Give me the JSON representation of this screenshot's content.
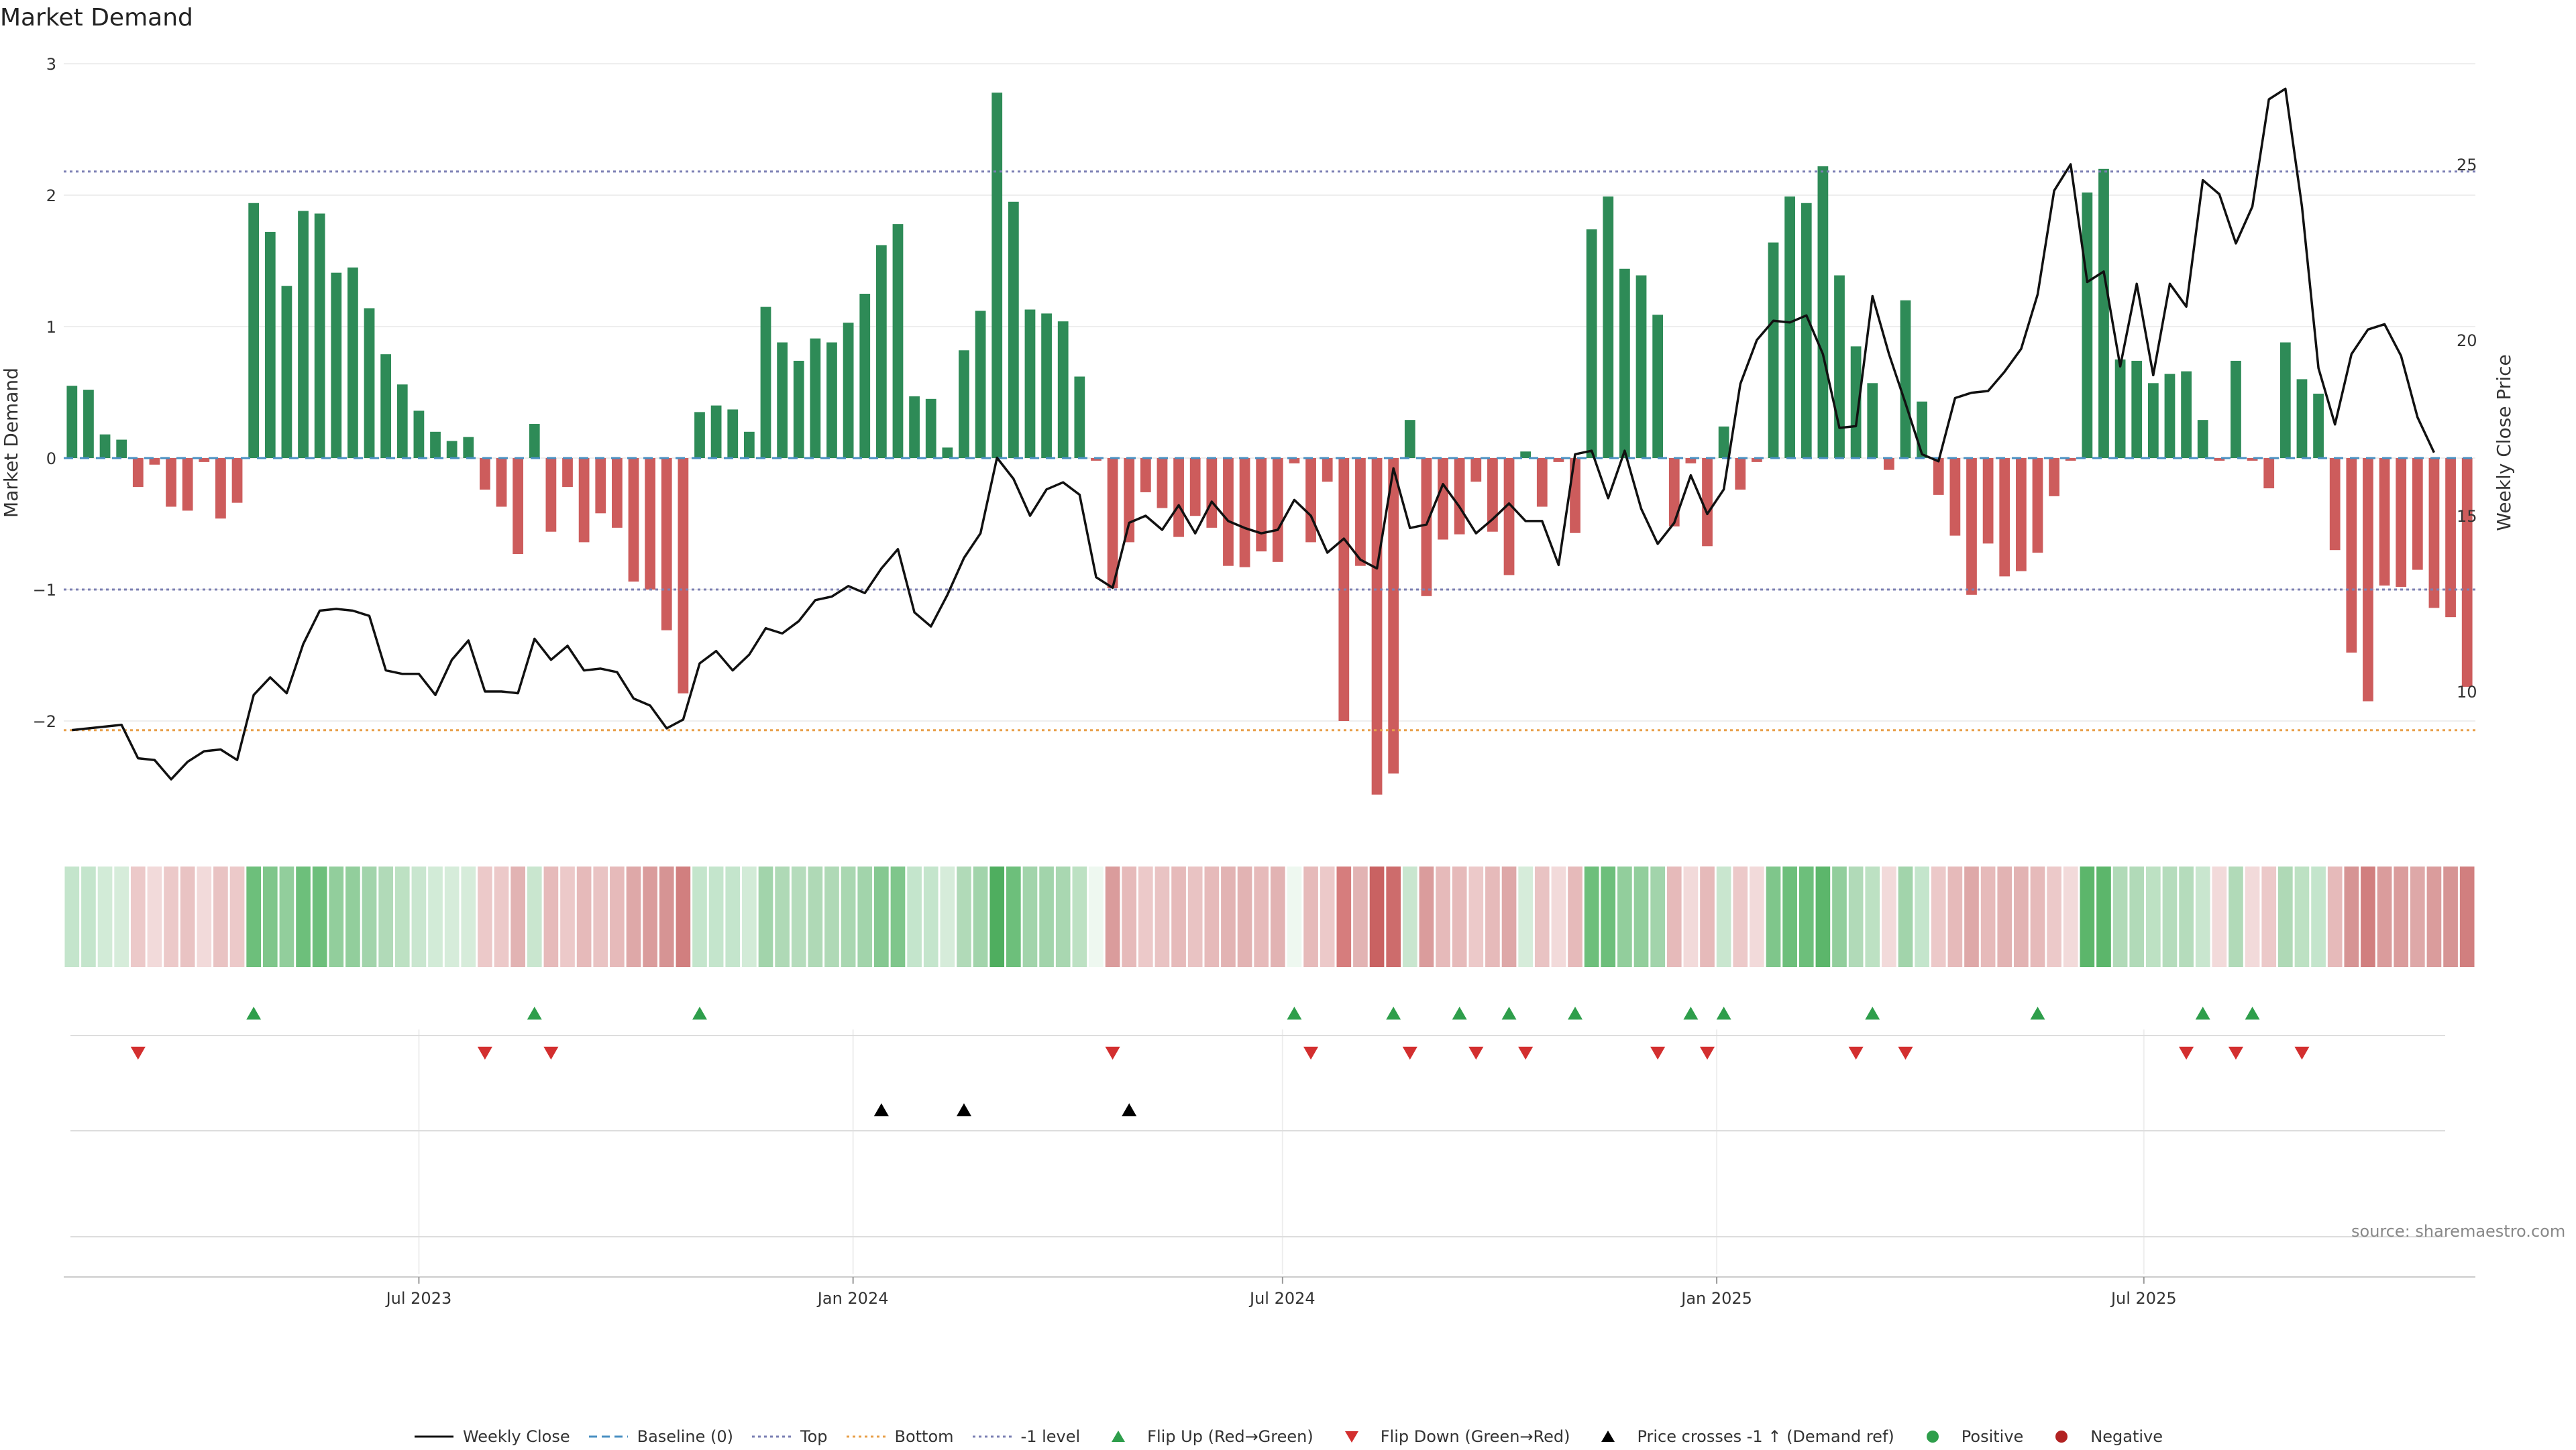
{
  "title": "Market Demand",
  "source": "source: sharemaestro.com",
  "chart_data": {
    "type": "bar",
    "ylabel_left": "Market Demand",
    "ylabel_right": "Weekly Close Price",
    "ylim_left": [
      -2.8,
      3.0
    ],
    "yticks_left": [
      3,
      2,
      1,
      0,
      -1,
      -2
    ],
    "ytick_labels_left": [
      "3",
      "2",
      "1",
      "0",
      "−1",
      "−2"
    ],
    "ylim_right": [
      6.3,
      28.3
    ],
    "yticks_right": [
      25,
      20,
      15,
      10
    ],
    "x_start": "2023-02-04",
    "x_tick_labels": [
      "Jul 2023",
      "Jan 2024",
      "Jul 2024",
      "Jan 2025",
      "Jul 2025"
    ],
    "x_tick_dates": [
      "2023-07-01",
      "2024-01-01",
      "2024-07-01",
      "2025-01-01",
      "2025-07-01"
    ],
    "reference_lines": {
      "top": 2.18,
      "bottom": -2.07,
      "minus_one": -1.0,
      "baseline": 0
    },
    "demand": [
      0.55,
      0.52,
      0.18,
      0.14,
      -0.22,
      -0.05,
      -0.37,
      -0.4,
      -0.03,
      -0.46,
      -0.34,
      1.94,
      1.72,
      1.31,
      1.88,
      1.86,
      1.41,
      1.45,
      1.14,
      0.79,
      0.56,
      0.36,
      0.2,
      0.13,
      0.16,
      -0.24,
      -0.37,
      -0.73,
      0.26,
      -0.56,
      -0.22,
      -0.64,
      -0.42,
      -0.53,
      -0.94,
      -1.0,
      -1.31,
      -1.79,
      0.35,
      0.4,
      0.37,
      0.2,
      1.15,
      0.88,
      0.74,
      0.91,
      0.88,
      1.03,
      1.25,
      1.62,
      1.78,
      0.47,
      0.45,
      0.08,
      0.82,
      1.12,
      2.78,
      1.95,
      1.13,
      1.1,
      1.04,
      0.62,
      -0.02,
      -0.99,
      -0.64,
      -0.26,
      -0.38,
      -0.6,
      -0.44,
      -0.53,
      -0.82,
      -0.83,
      -0.71,
      -0.79,
      -0.04,
      -0.64,
      -0.18,
      -2.0,
      -0.82,
      -2.56,
      -2.4,
      0.29,
      -1.05,
      -0.62,
      -0.58,
      -0.18,
      -0.56,
      -0.89,
      0.05,
      -0.37,
      -0.03,
      -0.57,
      1.74,
      1.99,
      1.44,
      1.39,
      1.09,
      -0.52,
      -0.04,
      -0.67,
      0.24,
      -0.24,
      -0.03,
      1.64,
      1.99,
      1.94,
      2.22,
      1.39,
      0.85,
      0.57,
      -0.09,
      1.2,
      0.43,
      -0.28,
      -0.59,
      -1.04,
      -0.65,
      -0.9,
      -0.86,
      -0.72,
      -0.29,
      -0.02,
      2.02,
      2.2,
      0.75,
      0.74,
      0.57,
      0.64,
      0.66,
      0.29,
      -0.02,
      0.74,
      -0.02,
      -0.23,
      0.88,
      0.6,
      0.49,
      -0.7,
      -1.48,
      -1.85,
      -0.97,
      -0.98,
      -0.85,
      -1.14,
      -1.21,
      -1.74
    ],
    "weekly_close": [
      8.9,
      8.95,
      9.0,
      9.05,
      8.1,
      8.05,
      7.5,
      8.0,
      8.3,
      8.35,
      8.05,
      9.9,
      10.4,
      9.95,
      11.35,
      12.3,
      12.35,
      12.3,
      12.15,
      10.6,
      10.5,
      10.5,
      9.9,
      10.9,
      11.45,
      10.0,
      10.0,
      9.95,
      11.5,
      10.9,
      11.3,
      10.6,
      10.65,
      10.55,
      9.8,
      9.6,
      8.95,
      9.2,
      10.8,
      11.15,
      10.6,
      11.05,
      11.8,
      11.65,
      12.0,
      12.6,
      12.7,
      13.0,
      12.8,
      13.5,
      14.05,
      12.25,
      11.85,
      12.75,
      13.8,
      14.5,
      16.65,
      16.05,
      15.0,
      15.75,
      15.95,
      15.6,
      13.25,
      12.95,
      14.8,
      15.0,
      14.6,
      15.3,
      14.5,
      15.4,
      14.85,
      14.65,
      14.5,
      14.6,
      15.45,
      15.0,
      13.95,
      14.35,
      13.75,
      13.5,
      16.35,
      14.65,
      14.75,
      15.9,
      15.25,
      14.5,
      14.9,
      15.35,
      14.85,
      14.85,
      13.6,
      16.75,
      16.85,
      15.5,
      16.85,
      15.2,
      14.2,
      14.8,
      16.15,
      15.05,
      15.75,
      18.75,
      20.0,
      20.55,
      20.5,
      20.7,
      19.6,
      17.5,
      17.55,
      21.25,
      19.6,
      18.2,
      16.75,
      16.55,
      18.35,
      18.5,
      18.55,
      19.1,
      19.75,
      21.3,
      24.25,
      25.0,
      21.65,
      21.95,
      19.25,
      21.6,
      19.0,
      21.6,
      20.95,
      24.55,
      24.15,
      22.75,
      23.8,
      26.85,
      27.15,
      23.8,
      19.2,
      17.6,
      19.6,
      20.3,
      20.45,
      19.55,
      17.8,
      16.8
    ],
    "strip": [
      "#c4e5cc",
      "#c4e5cc",
      "#d2ebd7",
      "#d6ecda",
      "#ecc9c9",
      "#f2dada",
      "#ecc9c9",
      "#e9c3c3",
      "#f2dada",
      "#e9c3c3",
      "#ecc9c9",
      "#6dbf7b",
      "#7fc68b",
      "#92ce9c",
      "#6dbf7b",
      "#6dbf7b",
      "#92ce9c",
      "#92ce9c",
      "#a2d4ab",
      "#b1dab8",
      "#bde1c3",
      "#c9e6cf",
      "#d2ebd7",
      "#d6ecda",
      "#d6ecda",
      "#ecc9c9",
      "#ecc9c9",
      "#e2b3b3",
      "#c9e6cf",
      "#e6baba",
      "#ecc9c9",
      "#e6baba",
      "#e9c3c3",
      "#e6baba",
      "#dea8a8",
      "#da9c9c",
      "#d69494",
      "#d17f7f",
      "#c4e5cc",
      "#c4e5cc",
      "#c4e5cc",
      "#d2ebd7",
      "#a2d4ab",
      "#afd9b6",
      "#b5dcbc",
      "#afd9b6",
      "#afd9b6",
      "#a9d7b1",
      "#a2d4ab",
      "#85c891",
      "#7fc68b",
      "#c4e5cc",
      "#c4e5cc",
      "#d6ecda",
      "#b1dab8",
      "#a2d4ab",
      "#4fae5f",
      "#6dbf7b",
      "#a2d4ab",
      "#a2d4ab",
      "#a9d7b1",
      "#bde1c3",
      "#eef8f0",
      "#da9c9c",
      "#e6baba",
      "#ecc9c9",
      "#e9c3c3",
      "#e6baba",
      "#e9c3c3",
      "#e6baba",
      "#e2b3b3",
      "#e2b3b3",
      "#e6baba",
      "#e2b3b3",
      "#eef8f0",
      "#e6baba",
      "#ecc9c9",
      "#d67d7d",
      "#e2b3b3",
      "#c96262",
      "#cd6c6c",
      "#c9e6cf",
      "#da9c9c",
      "#e6baba",
      "#e6baba",
      "#ecc9c9",
      "#e6baba",
      "#dea8a8",
      "#d6ecda",
      "#e9c3c3",
      "#f2dada",
      "#e6baba",
      "#6dbf7b",
      "#6dbf7b",
      "#92ce9c",
      "#92ce9c",
      "#a2d4ab",
      "#e6baba",
      "#f2dada",
      "#e6baba",
      "#c9e6cf",
      "#ecc9c9",
      "#f2dada",
      "#7fc68b",
      "#6dbf7b",
      "#6dbf7b",
      "#5cb66b",
      "#92ce9c",
      "#b1dab8",
      "#bde1c3",
      "#f2dada",
      "#a2d4ab",
      "#c4e5cc",
      "#ecc9c9",
      "#e6baba",
      "#dea8a8",
      "#e6baba",
      "#e2b3b3",
      "#e2b3b3",
      "#e6baba",
      "#ecc9c9",
      "#f2dada",
      "#5cb66b",
      "#5cb66b",
      "#b1dab8",
      "#b1dab8",
      "#bde1c3",
      "#b5dcbc",
      "#b5dcbc",
      "#c9e6cf",
      "#f2dada",
      "#b1dab8",
      "#f2dada",
      "#ecc9c9",
      "#afd9b6",
      "#bde1c3",
      "#c4e5cc",
      "#e6baba",
      "#d69494",
      "#d17f7f",
      "#da9c9c",
      "#da9c9c",
      "#dea8a8",
      "#da9c9c",
      "#d69494",
      "#d17f7f"
    ],
    "flip_up_weeks": [
      11,
      28,
      38,
      74,
      80,
      84,
      87,
      91,
      98,
      100,
      109,
      119,
      129,
      132
    ],
    "flip_down_weeks": [
      4,
      25,
      29,
      63,
      75,
      81,
      85,
      88,
      96,
      99,
      108,
      111,
      128,
      131,
      135
    ],
    "price_cross_weeks": [
      49,
      54,
      64
    ],
    "colors": {
      "positive": "#2e8b57",
      "negative": "#cd5c5c",
      "price": "#111111",
      "top": "#7b7fb3",
      "bottom": "#e8a04a",
      "minus_one": "#7b7fb3",
      "baseline": "#4a90c2",
      "flip_up": "#2e9e4b",
      "flip_down": "#d32f2f",
      "cross": "#000000"
    }
  },
  "legend": [
    {
      "label": "Weekly Close",
      "icon": "solid-line",
      "color": "#111111"
    },
    {
      "label": "Baseline (0)",
      "icon": "dashed-line",
      "color": "#4a90c2"
    },
    {
      "label": "Top",
      "icon": "dotted-line",
      "color": "#7b7fb3"
    },
    {
      "label": "Bottom",
      "icon": "dotted-line",
      "color": "#e8a04a"
    },
    {
      "label": "-1 level",
      "icon": "dotted-line",
      "color": "#7b7fb3"
    },
    {
      "label": "Flip Up (Red→Green)",
      "icon": "triangle-up",
      "color": "#2e9e4b"
    },
    {
      "label": "Flip Down (Green→Red)",
      "icon": "triangle-down",
      "color": "#d32f2f"
    },
    {
      "label": "Price crosses -1 ↑ (Demand ref)",
      "icon": "triangle-up",
      "color": "#000000"
    },
    {
      "label": "Positive",
      "icon": "dot",
      "color": "#2e9e4b"
    },
    {
      "label": "Negative",
      "icon": "dot",
      "color": "#b22222"
    }
  ]
}
